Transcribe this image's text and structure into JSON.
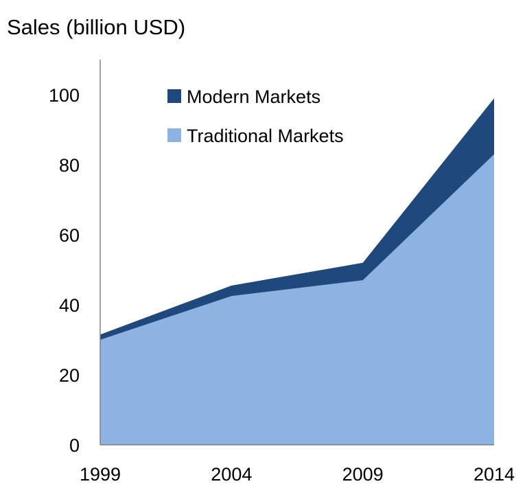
{
  "chart_data": {
    "type": "area",
    "stacked": true,
    "title": "",
    "ylabel": "Sales (billion USD)",
    "xlabel": "",
    "x": [
      "1999",
      "2004",
      "2009",
      "2014"
    ],
    "ylim": [
      0,
      110
    ],
    "yticks": [
      0,
      20,
      40,
      60,
      80,
      100
    ],
    "grid": false,
    "legend_position": "top-left",
    "series": [
      {
        "name": "Traditional Markets",
        "values": [
          30,
          42.5,
          47,
          83
        ],
        "color": "#8db3e2"
      },
      {
        "name": "Modern Markets",
        "values": [
          1.5,
          3,
          5,
          16
        ],
        "color": "#1f497d"
      }
    ]
  }
}
